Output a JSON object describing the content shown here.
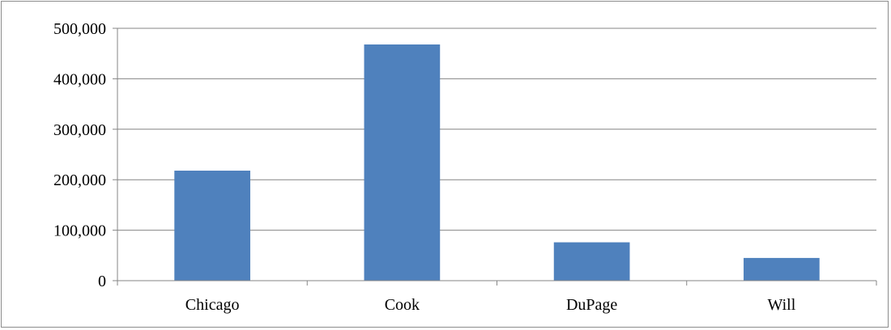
{
  "chart_data": {
    "type": "bar",
    "categories": [
      "Chicago",
      "Cook",
      "DuPage",
      "Will"
    ],
    "values": [
      218000,
      468000,
      76000,
      45000
    ],
    "title": "",
    "xlabel": "",
    "ylabel": "",
    "ylim": [
      0,
      500000
    ],
    "y_ticks": [
      0,
      100000,
      200000,
      300000,
      400000,
      500000
    ],
    "y_tick_labels": [
      "0",
      "100,000",
      "200,000",
      "300,000",
      "400,000",
      "500,000"
    ],
    "grid": true,
    "legend": "none",
    "bar_color": "#4f81bd",
    "gridline_color": "#868686"
  }
}
